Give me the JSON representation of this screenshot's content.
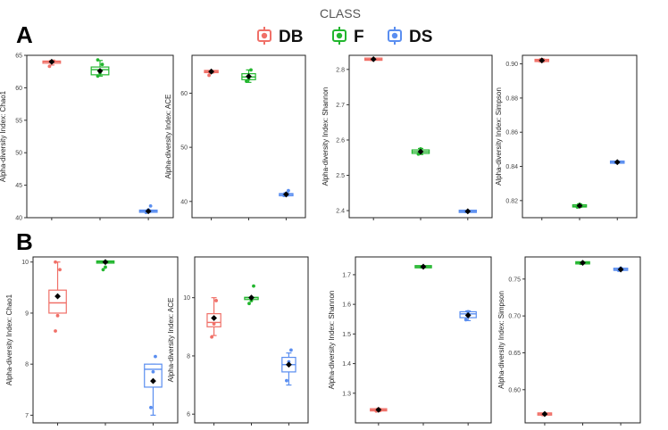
{
  "legend": {
    "title": "CLASS",
    "items": [
      {
        "label": "DB",
        "color": "#F07068"
      },
      {
        "label": "F",
        "color": "#22B62E"
      },
      {
        "label": "DS",
        "color": "#5A8EF0"
      }
    ]
  },
  "panel_labels": [
    "A",
    "B"
  ],
  "chart_data": [
    {
      "type": "box",
      "row": "A",
      "ylabel": "Alpha-diversity Index: Chao1",
      "ylim": [
        40,
        65
      ],
      "yticks": [
        40,
        45,
        50,
        55,
        60,
        65
      ],
      "groups": [
        {
          "class": "DB",
          "q1": 63.8,
          "median": 64.0,
          "q3": 64.1,
          "whisker_low": 63.5,
          "whisker_high": 64.2,
          "mean": 64.0,
          "points": [
            63.3,
            64.0,
            64.1
          ]
        },
        {
          "class": "F",
          "q1": 62.0,
          "median": 62.8,
          "q3": 63.2,
          "whisker_low": 61.8,
          "whisker_high": 64.2,
          "mean": 62.6,
          "points": [
            61.8,
            62.3,
            63.6,
            64.3
          ]
        },
        {
          "class": "DS",
          "q1": 40.9,
          "median": 41.0,
          "q3": 41.1,
          "whisker_low": 40.8,
          "whisker_high": 41.2,
          "mean": 41.0,
          "points": [
            40.8,
            41.2,
            41.8
          ]
        }
      ]
    },
    {
      "type": "box",
      "row": "A",
      "ylabel": "Alpha-diversity Index: ACE",
      "ylim": [
        37,
        67
      ],
      "yticks": [
        40,
        50,
        60
      ],
      "groups": [
        {
          "class": "DB",
          "q1": 63.9,
          "median": 64.0,
          "q3": 64.1,
          "whisker_low": 63.7,
          "whisker_high": 64.2,
          "mean": 64.0,
          "points": [
            63.3,
            64.1
          ]
        },
        {
          "class": "F",
          "q1": 62.5,
          "median": 63.0,
          "q3": 63.6,
          "whisker_low": 62.0,
          "whisker_high": 64.3,
          "mean": 63.1,
          "points": [
            62.2,
            62.6,
            64.3
          ]
        },
        {
          "class": "DS",
          "q1": 41.1,
          "median": 41.3,
          "q3": 41.4,
          "whisker_low": 41.0,
          "whisker_high": 41.6,
          "mean": 41.3,
          "points": [
            41.1,
            41.5,
            42.0
          ]
        }
      ]
    },
    {
      "type": "box",
      "row": "A",
      "ylabel": "Alpha-diversity Index: Shannon",
      "ylim": [
        2.38,
        2.84
      ],
      "yticks": [
        2.4,
        2.5,
        2.6,
        2.7,
        2.8
      ],
      "groups": [
        {
          "class": "DB",
          "q1": 2.828,
          "median": 2.829,
          "q3": 2.83,
          "whisker_low": 2.827,
          "whisker_high": 2.831,
          "mean": 2.829,
          "points": [
            2.828,
            2.83
          ]
        },
        {
          "class": "F",
          "q1": 2.562,
          "median": 2.567,
          "q3": 2.572,
          "whisker_low": 2.559,
          "whisker_high": 2.576,
          "mean": 2.567,
          "points": [
            2.56,
            2.575
          ]
        },
        {
          "class": "DS",
          "q1": 2.397,
          "median": 2.398,
          "q3": 2.399,
          "whisker_low": 2.396,
          "whisker_high": 2.4,
          "mean": 2.398,
          "points": [
            2.397,
            2.399
          ]
        }
      ]
    },
    {
      "type": "box",
      "row": "A",
      "ylabel": "Alpha-diversity Index: Simpson",
      "ylim": [
        0.81,
        0.905
      ],
      "yticks": [
        0.82,
        0.84,
        0.86,
        0.88,
        0.9
      ],
      "groups": [
        {
          "class": "DB",
          "q1": 0.9015,
          "median": 0.902,
          "q3": 0.9025,
          "whisker_low": 0.901,
          "whisker_high": 0.903,
          "mean": 0.902,
          "points": [
            0.9018,
            0.9022
          ]
        },
        {
          "class": "F",
          "q1": 0.8163,
          "median": 0.8168,
          "q3": 0.8175,
          "whisker_low": 0.816,
          "whisker_high": 0.818,
          "mean": 0.817,
          "points": [
            0.8162,
            0.8178
          ]
        },
        {
          "class": "DS",
          "q1": 0.8422,
          "median": 0.8425,
          "q3": 0.8428,
          "whisker_low": 0.842,
          "whisker_high": 0.843,
          "mean": 0.8425,
          "points": [
            0.8423,
            0.8428
          ]
        }
      ]
    },
    {
      "type": "box",
      "row": "B",
      "ylabel": "Alpha-diversity Index: Chao1",
      "ylim": [
        6.85,
        10.1
      ],
      "yticks": [
        7,
        8,
        9,
        10
      ],
      "groups": [
        {
          "class": "DB",
          "q1": 9.0,
          "median": 9.2,
          "q3": 9.45,
          "whisker_low": 9.0,
          "whisker_high": 10.0,
          "mean": 9.33,
          "points": [
            8.65,
            8.95,
            9.85,
            10.0
          ]
        },
        {
          "class": "F",
          "q1": 10.0,
          "median": 10.0,
          "q3": 10.0,
          "whisker_low": 10.0,
          "whisker_high": 10.0,
          "mean": 10.0,
          "points": [
            9.85,
            9.9,
            10.0
          ]
        },
        {
          "class": "DS",
          "q1": 7.55,
          "median": 7.9,
          "q3": 8.0,
          "whisker_low": 7.0,
          "whisker_high": 8.0,
          "mean": 7.67,
          "points": [
            7.15,
            7.85,
            8.15
          ]
        }
      ]
    },
    {
      "type": "box",
      "row": "B",
      "ylabel": "Alpha-diversity Index: ACE",
      "ylim": [
        5.7,
        11.4
      ],
      "yticks": [
        6,
        8,
        10
      ],
      "groups": [
        {
          "class": "DB",
          "q1": 9.0,
          "median": 9.15,
          "q3": 9.45,
          "whisker_low": 8.7,
          "whisker_high": 10.0,
          "mean": 9.3,
          "points": [
            8.65,
            9.1,
            9.9
          ]
        },
        {
          "class": "F",
          "q1": 9.95,
          "median": 10.0,
          "q3": 10.0,
          "whisker_low": 9.95,
          "whisker_high": 10.0,
          "mean": 10.0,
          "points": [
            9.8,
            9.9,
            10.4
          ]
        },
        {
          "class": "DS",
          "q1": 7.45,
          "median": 7.7,
          "q3": 7.95,
          "whisker_low": 7.0,
          "whisker_high": 8.1,
          "mean": 7.7,
          "points": [
            7.15,
            7.8,
            8.2
          ]
        }
      ]
    },
    {
      "type": "box",
      "row": "B",
      "ylabel": "Alpha-diversity Index: Shannon",
      "ylim": [
        1.2,
        1.76
      ],
      "yticks": [
        1.3,
        1.4,
        1.5,
        1.6,
        1.7
      ],
      "groups": [
        {
          "class": "DB",
          "q1": 1.241,
          "median": 1.244,
          "q3": 1.247,
          "whisker_low": 1.238,
          "whisker_high": 1.249,
          "mean": 1.244,
          "points": [
            1.24,
            1.247
          ]
        },
        {
          "class": "F",
          "q1": 1.726,
          "median": 1.727,
          "q3": 1.728,
          "whisker_low": 1.725,
          "whisker_high": 1.729,
          "mean": 1.727,
          "points": [
            1.726,
            1.728
          ]
        },
        {
          "class": "DS",
          "q1": 1.555,
          "median": 1.568,
          "q3": 1.575,
          "whisker_low": 1.545,
          "whisker_high": 1.578,
          "mean": 1.563,
          "points": [
            1.548,
            1.575
          ]
        }
      ]
    },
    {
      "type": "box",
      "row": "B",
      "ylabel": "Alpha-diversity Index: Simpson",
      "ylim": [
        0.555,
        0.78
      ],
      "yticks": [
        0.6,
        0.65,
        0.7,
        0.75
      ],
      "groups": [
        {
          "class": "DB",
          "q1": 0.5665,
          "median": 0.567,
          "q3": 0.5675,
          "whisker_low": 0.566,
          "whisker_high": 0.568,
          "mean": 0.567,
          "points": [
            0.5662,
            0.5678
          ]
        },
        {
          "class": "F",
          "q1": 0.7715,
          "median": 0.772,
          "q3": 0.7725,
          "whisker_low": 0.771,
          "whisker_high": 0.773,
          "mean": 0.772,
          "points": [
            0.7712,
            0.7728
          ]
        },
        {
          "class": "DS",
          "q1": 0.762,
          "median": 0.763,
          "q3": 0.7645,
          "whisker_low": 0.7615,
          "whisker_high": 0.765,
          "mean": 0.763,
          "points": [
            0.7618,
            0.7648
          ]
        }
      ]
    }
  ]
}
